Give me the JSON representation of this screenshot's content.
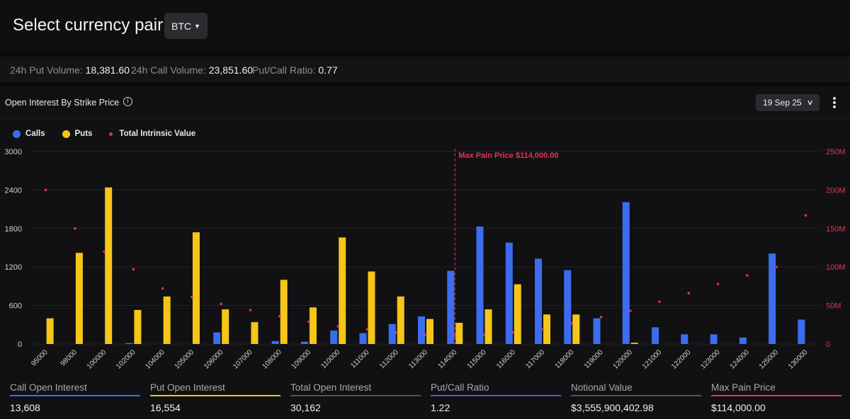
{
  "header": {
    "title": "Select currency pair:",
    "pair": "BTC"
  },
  "stats": [
    {
      "label": "24h Put Volume:",
      "value": "18,381.60"
    },
    {
      "label": "24h Call Volume:",
      "value": "23,851.60"
    },
    {
      "label": "Put/Call Ratio:",
      "value": "0.77"
    }
  ],
  "panel": {
    "title": "Open Interest By Strike Price",
    "info_icon": "info-icon",
    "expiry": "19 Sep 25",
    "menu_icon": "kebab-menu-icon"
  },
  "legend": [
    {
      "name": "Calls",
      "color": "#3c6df0"
    },
    {
      "name": "Puts",
      "color": "#f5c518"
    },
    {
      "name": "Total Intrinsic Value",
      "color": "#e8334f"
    }
  ],
  "chart_data": {
    "type": "bar",
    "categories": [
      "95000",
      "98000",
      "100000",
      "102000",
      "104000",
      "105000",
      "106000",
      "107000",
      "108000",
      "109000",
      "110000",
      "111000",
      "112000",
      "113000",
      "114000",
      "115000",
      "116000",
      "117000",
      "118000",
      "119000",
      "120000",
      "121000",
      "122000",
      "123000",
      "124000",
      "125000",
      "130000"
    ],
    "series": [
      {
        "name": "Calls",
        "color": "#3c6df0",
        "values": [
          0,
          0,
          0,
          15,
          0,
          0,
          180,
          0,
          45,
          35,
          210,
          170,
          310,
          430,
          1140,
          1830,
          1580,
          1330,
          1150,
          400,
          2210,
          260,
          150,
          150,
          100,
          1410,
          380
        ]
      },
      {
        "name": "Puts",
        "color": "#f5c518",
        "values": [
          400,
          1420,
          2440,
          530,
          740,
          1740,
          540,
          340,
          1000,
          570,
          1660,
          1130,
          740,
          390,
          330,
          540,
          930,
          460,
          460,
          0,
          20,
          0,
          0,
          0,
          0,
          0,
          0
        ]
      },
      {
        "name": "Total Intrinsic Value",
        "color": "#e8334f",
        "type": "scatter",
        "axis": "right",
        "values": [
          200000000,
          150000000,
          120000000,
          97000000,
          72000000,
          61000000,
          52000000,
          44000000,
          36000000,
          29000000,
          23000000,
          19000000,
          15000000,
          12000000,
          11000000,
          12000000,
          15000000,
          19000000,
          27000000,
          35000000,
          43000000,
          55000000,
          66000000,
          78000000,
          89000000,
          100000000,
          167000000
        ]
      }
    ],
    "y_left": {
      "min": 0,
      "max": 3000,
      "ticks": [
        "0",
        "600",
        "1200",
        "1800",
        "2400",
        "3000"
      ]
    },
    "y_right": {
      "min": 0,
      "max": 250000000,
      "ticks": [
        "0",
        "50M",
        "100M",
        "150M",
        "200M",
        "250M"
      ]
    },
    "annotation": {
      "text": "Max Pain Price $114,000.00",
      "category": "114000"
    },
    "legend_position": "top-left",
    "grid": true
  },
  "footer": [
    {
      "label": "Call Open Interest",
      "value": "13,608",
      "color": "#3c6df0"
    },
    {
      "label": "Put Open Interest",
      "value": "16,554",
      "color": "#f5c518"
    },
    {
      "label": "Total Open Interest",
      "value": "30,162",
      "color": "#555558"
    },
    {
      "label": "Put/Call Ratio",
      "value": "1.22",
      "color": "#6b4ae0"
    },
    {
      "label": "Notional Value",
      "value": "$3,555,900,402.98",
      "color": "#555558"
    },
    {
      "label": "Max Pain Price",
      "value": "$114,000.00",
      "color": "#e8334f"
    }
  ]
}
